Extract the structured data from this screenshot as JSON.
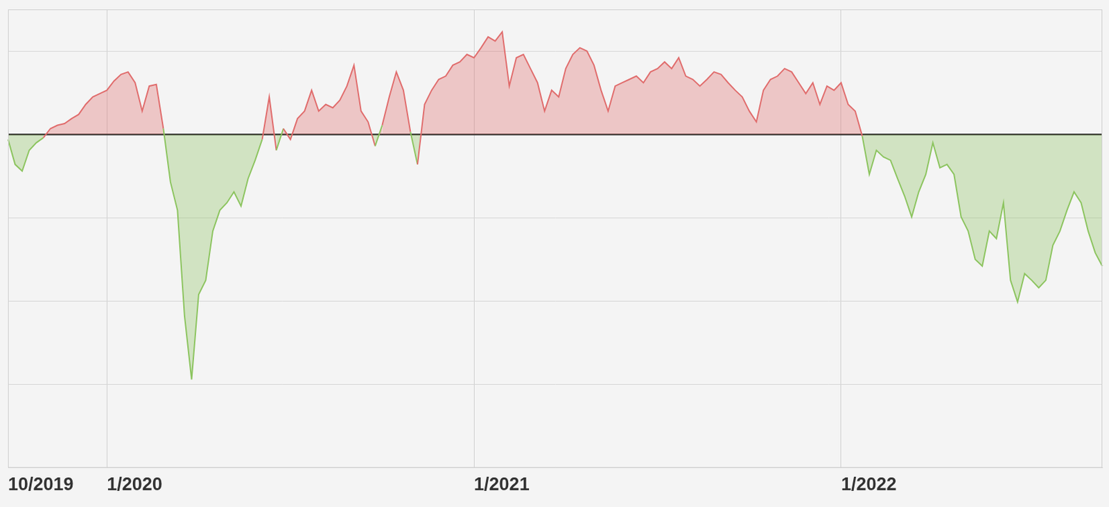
{
  "chart_data": {
    "type": "area",
    "categories": [
      "10/2019",
      null,
      null,
      null,
      null,
      null,
      null,
      null,
      null,
      null,
      null,
      null,
      null,
      null,
      "1/2020",
      null,
      null,
      null,
      null,
      null,
      null,
      null,
      null,
      null,
      null,
      null,
      null,
      null,
      null,
      null,
      null,
      null,
      null,
      null,
      null,
      null,
      null,
      null,
      null,
      null,
      null,
      null,
      null,
      null,
      null,
      null,
      null,
      null,
      null,
      null,
      null,
      null,
      null,
      null,
      null,
      null,
      null,
      null,
      null,
      null,
      null,
      null,
      null,
      null,
      null,
      null,
      "1/2021",
      null,
      null,
      null,
      null,
      null,
      null,
      null,
      null,
      null,
      null,
      null,
      null,
      null,
      null,
      null,
      null,
      null,
      null,
      null,
      null,
      null,
      null,
      null,
      null,
      null,
      null,
      null,
      null,
      null,
      null,
      null,
      null,
      null,
      null,
      null,
      null,
      null,
      null,
      null,
      null,
      null,
      null,
      null,
      null,
      null,
      null,
      null,
      null,
      null,
      null,
      null,
      "1/2022",
      null,
      null,
      null,
      null,
      null,
      null,
      null,
      null,
      null,
      null,
      null,
      null,
      null,
      null,
      null,
      null,
      null,
      null,
      null,
      null,
      null,
      null,
      null,
      null,
      null,
      null,
      null,
      null,
      null,
      null,
      null,
      null,
      null,
      null,
      null,
      null,
      null
    ],
    "values": [
      -0.06,
      -0.36,
      -0.44,
      -0.19,
      -0.1,
      -0.04,
      0.07,
      0.11,
      0.13,
      0.19,
      0.24,
      0.36,
      0.45,
      0.49,
      0.53,
      0.64,
      0.72,
      0.75,
      0.62,
      0.28,
      0.58,
      0.6,
      0.07,
      -0.57,
      -0.91,
      -2.18,
      -2.94,
      -1.92,
      -1.75,
      -1.16,
      -0.91,
      -0.82,
      -0.69,
      -0.86,
      -0.53,
      -0.31,
      -0.06,
      0.45,
      -0.19,
      0.07,
      -0.06,
      0.19,
      0.28,
      0.53,
      0.28,
      0.36,
      0.32,
      0.41,
      0.58,
      0.83,
      0.28,
      0.15,
      -0.14,
      0.11,
      0.45,
      0.75,
      0.53,
      0.03,
      -0.36,
      0.36,
      0.53,
      0.66,
      0.7,
      0.83,
      0.87,
      0.96,
      0.92,
      1.04,
      1.17,
      1.12,
      1.23,
      0.58,
      0.92,
      0.96,
      0.79,
      0.62,
      0.28,
      0.53,
      0.45,
      0.79,
      0.96,
      1.04,
      1.0,
      0.83,
      0.53,
      0.28,
      0.58,
      0.62,
      0.66,
      0.7,
      0.62,
      0.75,
      0.79,
      0.87,
      0.79,
      0.92,
      0.7,
      0.66,
      0.58,
      0.66,
      0.75,
      0.72,
      0.62,
      0.53,
      0.45,
      0.28,
      0.15,
      0.53,
      0.66,
      0.7,
      0.79,
      0.75,
      0.62,
      0.49,
      0.62,
      0.36,
      0.58,
      0.53,
      0.62,
      0.36,
      0.28,
      -0.02,
      -0.48,
      -0.19,
      -0.27,
      -0.31,
      -0.53,
      -0.74,
      -0.99,
      -0.69,
      -0.48,
      -0.1,
      -0.4,
      -0.36,
      -0.48,
      -0.99,
      -1.16,
      -1.5,
      -1.58,
      -1.16,
      -1.25,
      -0.82,
      -1.75,
      -2.01,
      -1.67,
      -1.75,
      -1.84,
      -1.75,
      -1.33,
      -1.16,
      -0.91,
      -0.69,
      -0.82,
      -1.16,
      -1.42,
      -1.58
    ],
    "color": {
      "above": "#e06c6c",
      "below": "#8cc45f"
    },
    "ylim": [
      -4,
      1.5
    ],
    "yticks": [
      -4,
      -3,
      -2,
      -1,
      0,
      1
    ],
    "grid": true,
    "tick_labels": "x"
  }
}
